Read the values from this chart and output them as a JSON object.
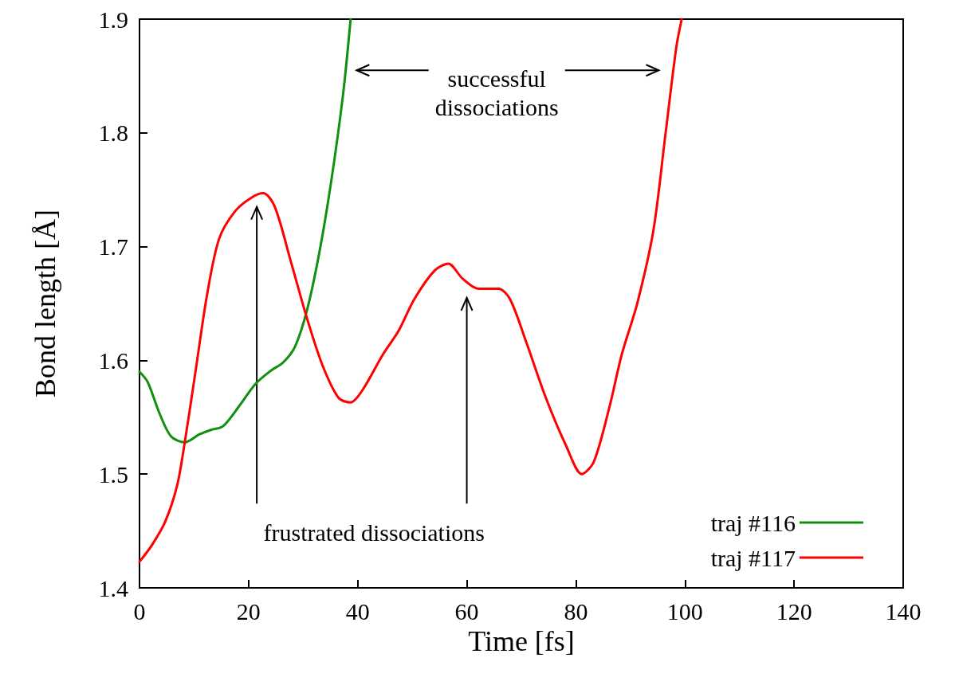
{
  "chart_data": {
    "type": "line",
    "xlabel": "Time [fs]",
    "ylabel": "Bond length [Å]",
    "xlim": [
      0,
      140
    ],
    "xticks": [
      0,
      20,
      40,
      60,
      80,
      100,
      120,
      140
    ],
    "ylim": [
      1.4,
      1.9
    ],
    "yticks": [
      1.4,
      1.5,
      1.6,
      1.7,
      1.8,
      1.9
    ],
    "grid": false,
    "legend": "bottom right",
    "marker": "none",
    "line_style": "solid",
    "annotations": [
      "successful\ndissociations",
      "frustrated dissociations"
    ],
    "series": [
      {
        "name": "traj #116",
        "color": "#109010",
        "x": [
          0,
          1.5,
          3.7,
          5.8,
          8.3,
          11,
          13.2,
          15.3,
          18.3,
          21.2,
          24.1,
          26.3,
          28.5,
          30.7,
          32.9,
          35.1,
          37.3,
          38.7
        ],
        "values": [
          1.59,
          1.581,
          1.553,
          1.533,
          1.528,
          1.535,
          1.539,
          1.542,
          1.56,
          1.579,
          1.591,
          1.598,
          1.612,
          1.644,
          1.693,
          1.756,
          1.833,
          1.9
        ]
      },
      {
        "name": "traj #117",
        "color": "#ff0000",
        "x": [
          0,
          2.2,
          4.7,
          6.9,
          8.3,
          10.2,
          12.4,
          14.6,
          17.5,
          20.5,
          22.7,
          24.8,
          27.8,
          30.7,
          33.6,
          36.5,
          38.7,
          40.9,
          44.6,
          47.5,
          50.4,
          54.1,
          56.6,
          59.2,
          62.1,
          65.8,
          67.9,
          70.9,
          74.5,
          78.2,
          81.1,
          83.3,
          86.2,
          88.4,
          91.3,
          94.2,
          96.4,
          98.4,
          99.4
        ],
        "values": [
          1.423,
          1.437,
          1.458,
          1.49,
          1.528,
          1.588,
          1.658,
          1.707,
          1.731,
          1.743,
          1.747,
          1.735,
          1.686,
          1.637,
          1.595,
          1.567,
          1.563,
          1.574,
          1.605,
          1.626,
          1.654,
          1.679,
          1.685,
          1.672,
          1.663,
          1.663,
          1.654,
          1.616,
          1.567,
          1.525,
          1.5,
          1.511,
          1.56,
          1.605,
          1.651,
          1.714,
          1.798,
          1.875,
          1.9
        ]
      }
    ]
  }
}
